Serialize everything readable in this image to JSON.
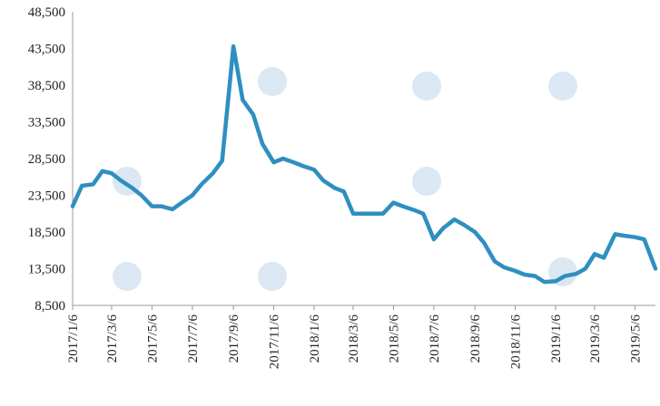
{
  "chart_data": {
    "type": "line",
    "title": "",
    "xlabel": "",
    "ylabel": "",
    "ylim": [
      8500,
      48500
    ],
    "y_ticks": [
      "8,500",
      "13,500",
      "18,500",
      "23,500",
      "28,500",
      "33,500",
      "38,500",
      "43,500",
      "48,500"
    ],
    "y_tick_values": [
      8500,
      13500,
      18500,
      23500,
      28500,
      33500,
      38500,
      43500,
      48500
    ],
    "x_ticks": [
      "2017/1/6",
      "2017/3/6",
      "2017/5/6",
      "2017/7/6",
      "2017/9/6",
      "2017/11/6",
      "2018/1/6",
      "2018/3/6",
      "2018/5/6",
      "2018/7/6",
      "2018/9/6",
      "2018/11/6",
      "2019/1/6",
      "2019/3/6",
      "2019/5/6"
    ],
    "grid": false,
    "legend": "none",
    "line_color": "#2e8fc0",
    "series": [
      {
        "x": [
          "2017/1/6",
          "2017/1/20",
          "2017/2/6",
          "2017/2/20",
          "2017/3/6",
          "2017/3/20",
          "2017/4/6",
          "2017/4/20",
          "2017/5/6",
          "2017/5/20",
          "2017/6/6",
          "2017/6/20",
          "2017/7/6",
          "2017/7/20",
          "2017/8/6",
          "2017/8/20",
          "2017/9/6",
          "2017/9/20",
          "2017/10/6",
          "2017/10/20",
          "2017/11/6",
          "2017/11/20",
          "2017/12/6",
          "2017/12/20",
          "2018/1/6",
          "2018/1/20",
          "2018/2/6",
          "2018/2/20",
          "2018/3/6",
          "2018/3/20",
          "2018/4/6",
          "2018/4/20",
          "2018/5/6",
          "2018/5/20",
          "2018/6/6",
          "2018/6/20",
          "2018/7/6",
          "2018/7/20",
          "2018/8/6",
          "2018/8/20",
          "2018/9/6",
          "2018/9/20",
          "2018/10/6",
          "2018/10/20",
          "2018/11/6",
          "2018/11/20",
          "2018/12/6",
          "2018/12/20",
          "2019/1/6",
          "2019/1/20",
          "2019/2/6",
          "2019/2/20",
          "2019/3/6",
          "2019/3/20",
          "2019/4/6",
          "2019/4/20",
          "2019/5/6",
          "2019/5/20",
          "2019/6/6"
        ],
        "values": [
          22000,
          24800,
          25000,
          26800,
          26500,
          25500,
          24500,
          23500,
          22000,
          22000,
          21600,
          22500,
          23500,
          25000,
          26500,
          28200,
          43800,
          36500,
          34500,
          30500,
          28000,
          28500,
          28000,
          27500,
          27000,
          25500,
          24500,
          24000,
          21000,
          21000,
          21000,
          21000,
          22500,
          22000,
          21500,
          21000,
          17500,
          19000,
          20200,
          19500,
          18500,
          17000,
          14500,
          13700,
          13200,
          12700,
          12500,
          11700,
          11800,
          12500,
          12800,
          13500,
          15500,
          15000,
          18200,
          18000,
          17800,
          17500,
          13500
        ]
      }
    ]
  }
}
